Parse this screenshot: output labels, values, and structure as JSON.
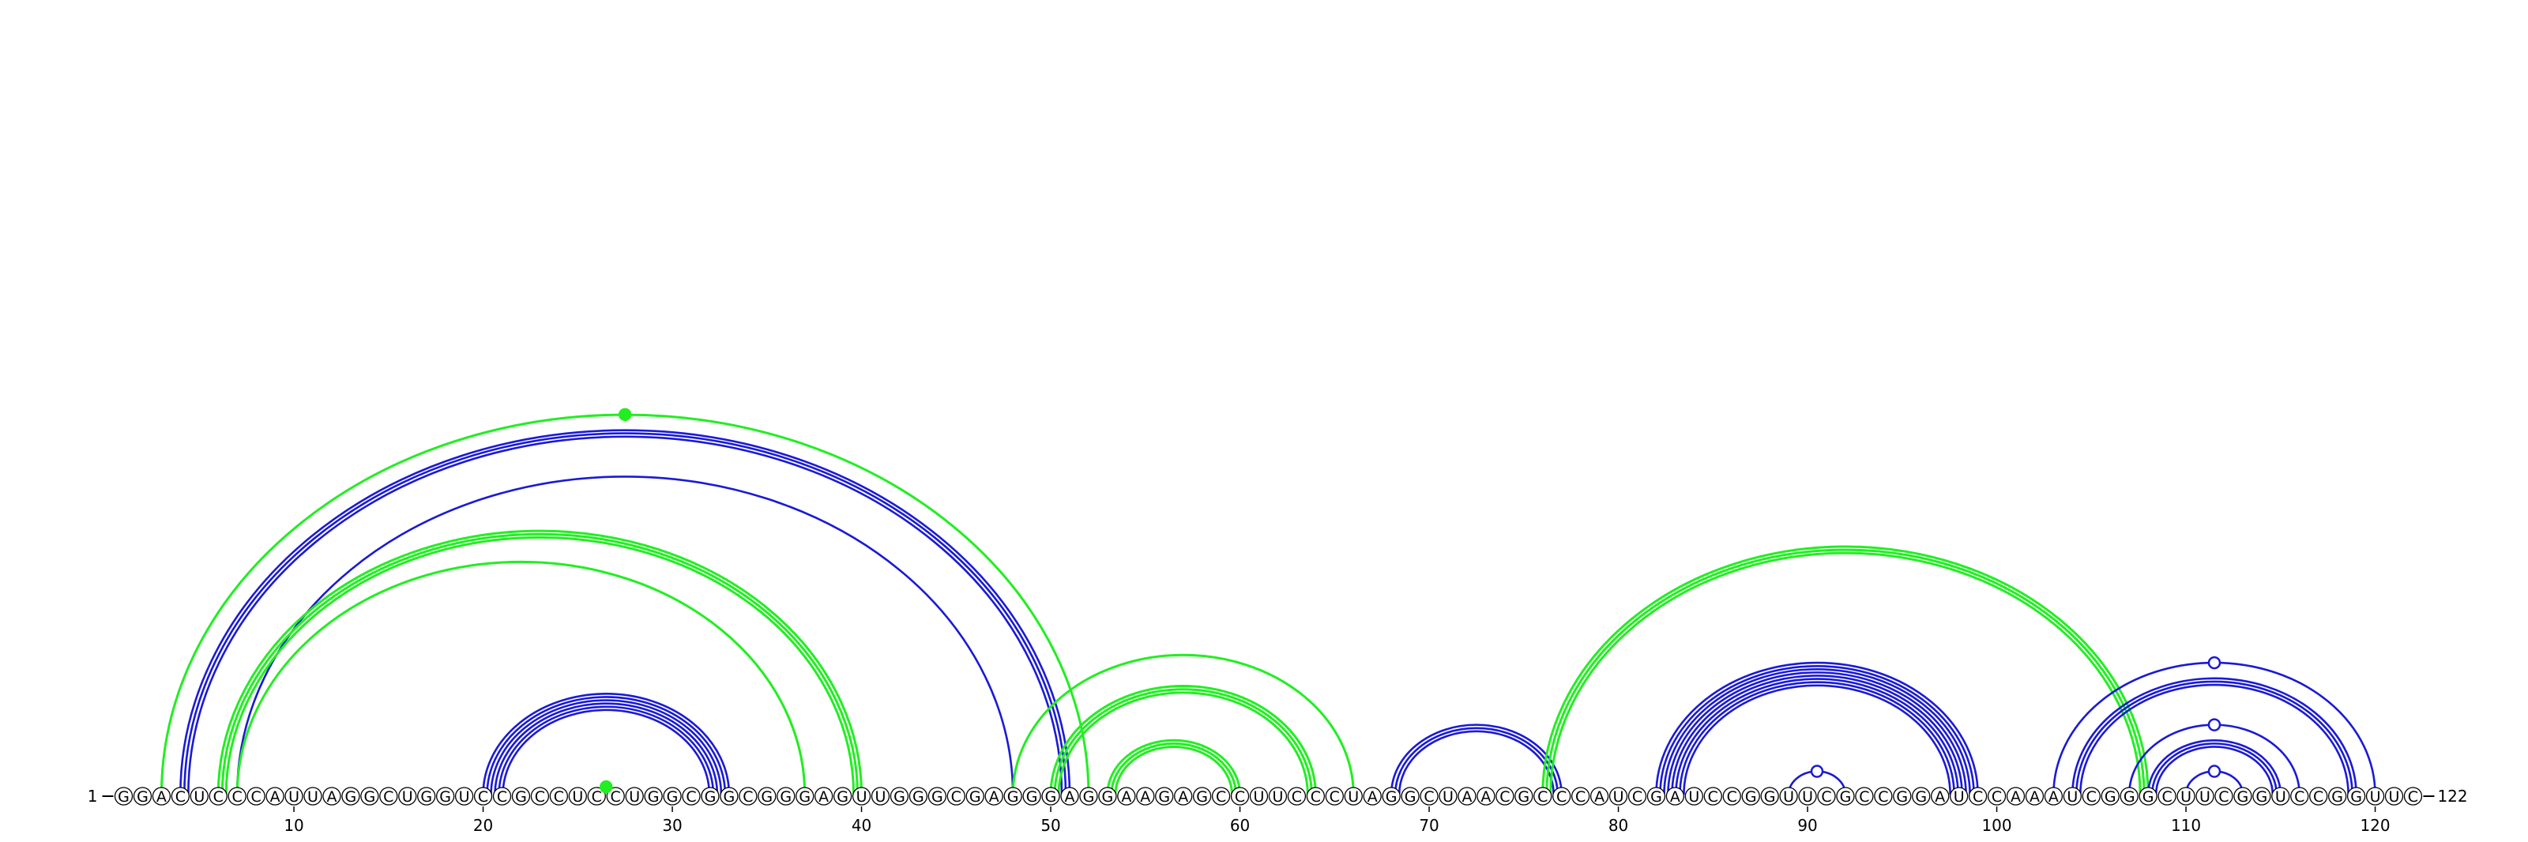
{
  "sequence": "GGACUCCCAUUAGGCUGGUCCGCCUCCUGGCGGCGGGAGUUGGGCGAGGGAGGAAGAGCCUUCCCUAGGCUAACGCCCAUCGAUCCGGUUCGCCGGAUCCAAAUCGGGCUUCGGUCCGGUUC",
  "start_label": "1",
  "end_label": "122",
  "tick_labels": [
    "10",
    "20",
    "30",
    "40",
    "50",
    "60",
    "70",
    "80",
    "90",
    "100",
    "110",
    "120"
  ],
  "tick_positions": [
    10,
    20,
    30,
    40,
    50,
    60,
    70,
    80,
    90,
    100,
    110,
    120
  ],
  "colors": {
    "blue_arc": "#1a1ad6",
    "green_arc": "#22ee22",
    "nucleotide_fill": "#ffffff",
    "nucleotide_stroke": "#000000",
    "text": "#000000"
  },
  "helices": [
    {
      "color": "green",
      "i": 3,
      "j": 52,
      "count": 1,
      "closed_marker": true
    },
    {
      "color": "blue",
      "i": 4,
      "j": 51,
      "count": 3
    },
    {
      "color": "blue",
      "i": 7,
      "j": 48,
      "count": 1
    },
    {
      "color": "green",
      "i": 6,
      "j": 40,
      "count": 3
    },
    {
      "color": "green",
      "i": 7,
      "j": 37,
      "count": 1
    },
    {
      "color": "blue",
      "i": 20,
      "j": 33,
      "count": 6
    },
    {
      "color": "green",
      "i": 26,
      "j": 27,
      "count": 1,
      "closed_marker": true
    },
    {
      "color": "green",
      "i": 48,
      "j": 66,
      "count": 1
    },
    {
      "color": "green",
      "i": 50,
      "j": 64,
      "count": 3
    },
    {
      "color": "green",
      "i": 53,
      "j": 60,
      "count": 3
    },
    {
      "color": "blue",
      "i": 68,
      "j": 77,
      "count": 3
    },
    {
      "color": "green",
      "i": 76,
      "j": 108,
      "count": 3
    },
    {
      "color": "blue",
      "i": 82,
      "j": 99,
      "count": 8
    },
    {
      "color": "blue",
      "i": 89,
      "j": 92,
      "count": 1,
      "open_marker": true
    },
    {
      "color": "blue",
      "i": 103,
      "j": 120,
      "count": 1,
      "open_marker": true
    },
    {
      "color": "blue",
      "i": 104,
      "j": 119,
      "count": 3
    },
    {
      "color": "blue",
      "i": 107,
      "j": 116,
      "count": 1,
      "open_marker": true
    },
    {
      "color": "blue",
      "i": 108,
      "j": 115,
      "count": 3
    },
    {
      "color": "blue",
      "i": 110,
      "j": 113,
      "count": 1,
      "open_marker": true
    }
  ]
}
